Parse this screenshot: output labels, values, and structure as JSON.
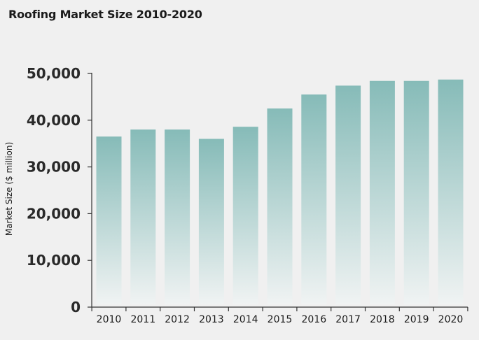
{
  "chart_data": {
    "type": "bar",
    "title": "Roofing Market Size 2010-2020",
    "xlabel": "",
    "ylabel": "Market Size ($ million)",
    "categories": [
      "2010",
      "2011",
      "2012",
      "2013",
      "2014",
      "2015",
      "2016",
      "2017",
      "2018",
      "2019",
      "2020"
    ],
    "values": [
      36500,
      38000,
      38000,
      36000,
      38600,
      42500,
      45500,
      47400,
      48400,
      48400,
      48700
    ],
    "ylim": [
      0,
      50000
    ],
    "yticks": [
      0,
      10000,
      20000,
      30000,
      40000,
      50000
    ],
    "ytick_labels": [
      "0",
      "10,000",
      "20,000",
      "30,000",
      "40,000",
      "50,000"
    ],
    "grid": false,
    "colors": {
      "bar_top": "#86bbb8",
      "bar_bottom": "#f0f3f3",
      "axis": "#333333"
    }
  }
}
